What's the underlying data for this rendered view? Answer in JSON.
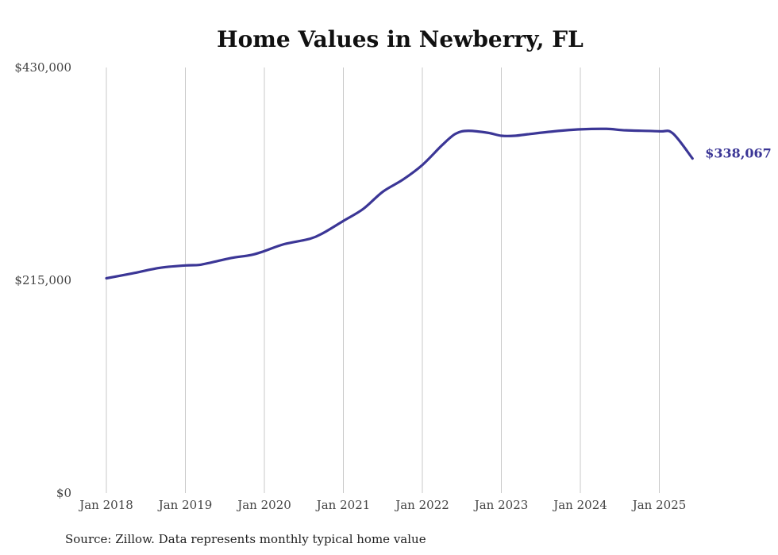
{
  "chart_data": {
    "type": "line",
    "title": "Home Values in Newberry, FL",
    "xlabel": "",
    "ylabel": "",
    "ylim": [
      0,
      430000
    ],
    "y_ticks": [
      {
        "value": 0,
        "label": "$0"
      },
      {
        "value": 215000,
        "label": "$215,000"
      },
      {
        "value": 430000,
        "label": "$430,000"
      }
    ],
    "x_ticks": [
      {
        "value": 2018.0,
        "label": "Jan 2018"
      },
      {
        "value": 2019.0,
        "label": "Jan 2019"
      },
      {
        "value": 2020.0,
        "label": "Jan 2020"
      },
      {
        "value": 2021.0,
        "label": "Jan 2021"
      },
      {
        "value": 2022.0,
        "label": "Jan 2022"
      },
      {
        "value": 2023.0,
        "label": "Jan 2023"
      },
      {
        "value": 2024.0,
        "label": "Jan 2024"
      },
      {
        "value": 2025.0,
        "label": "Jan 2025"
      }
    ],
    "xlim": [
      2018.0,
      2025.42
    ],
    "grid": "vertical",
    "series": [
      {
        "color": "#3b3696",
        "end_label": "$338,067",
        "points": [
          [
            2018.0,
            217000
          ],
          [
            2018.33,
            222000
          ],
          [
            2018.67,
            227500
          ],
          [
            2019.0,
            230000
          ],
          [
            2019.17,
            230500
          ],
          [
            2019.33,
            233000
          ],
          [
            2019.58,
            237500
          ],
          [
            2019.83,
            240500
          ],
          [
            2020.0,
            244500
          ],
          [
            2020.25,
            251500
          ],
          [
            2020.58,
            257000
          ],
          [
            2020.75,
            263000
          ],
          [
            2021.0,
            275000
          ],
          [
            2021.25,
            287000
          ],
          [
            2021.5,
            304500
          ],
          [
            2021.75,
            316500
          ],
          [
            2022.0,
            331500
          ],
          [
            2022.25,
            351500
          ],
          [
            2022.42,
            363000
          ],
          [
            2022.58,
            366000
          ],
          [
            2022.83,
            364000
          ],
          [
            2023.0,
            361000
          ],
          [
            2023.17,
            361000
          ],
          [
            2023.33,
            362500
          ],
          [
            2023.67,
            365500
          ],
          [
            2024.0,
            367500
          ],
          [
            2024.33,
            368000
          ],
          [
            2024.58,
            366500
          ],
          [
            2025.0,
            365500
          ],
          [
            2025.17,
            363500
          ],
          [
            2025.42,
            338067
          ]
        ]
      }
    ]
  },
  "source": "Source: Zillow. Data represents monthly typical home value"
}
